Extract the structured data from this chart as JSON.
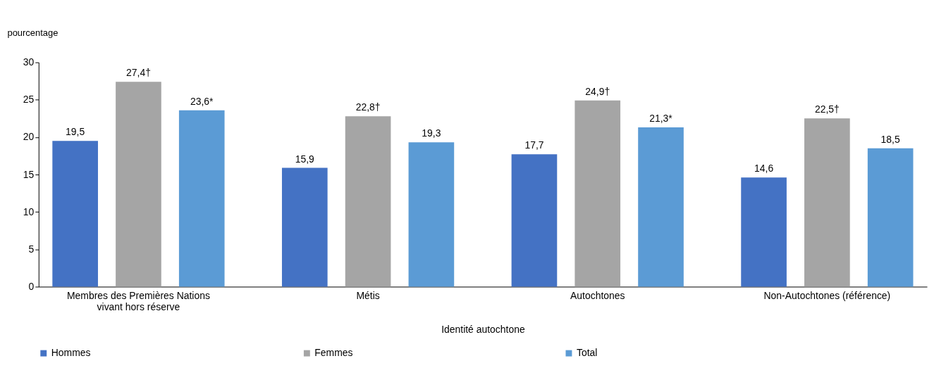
{
  "chart_data": {
    "type": "bar",
    "xlabel": "Identité autochtone",
    "ylabel": "pourcentage",
    "categories": [
      "Membres des Premières Nations\nvivant hors réserve",
      "Métis",
      "Autochtones",
      "Non-Autochtones (référence)"
    ],
    "series": [
      {
        "name": "Hommes",
        "color": "#4472c4",
        "values": [
          19.5,
          15.9,
          17.7,
          14.6
        ],
        "value_labels": [
          "19,5",
          "15,9",
          "17,7",
          "14,6"
        ]
      },
      {
        "name": "Femmes",
        "color": "#a5a5a5",
        "values": [
          27.4,
          22.8,
          24.9,
          22.5
        ],
        "value_labels": [
          "27,4†",
          "22,8†",
          "24,9†",
          "22,5†"
        ]
      },
      {
        "name": "Total",
        "color": "#5b9bd5",
        "values": [
          23.6,
          19.3,
          21.3,
          18.5
        ],
        "value_labels": [
          "23,6*",
          "19,3",
          "21,3*",
          "18,5"
        ]
      }
    ],
    "ylim": [
      0,
      30
    ],
    "yticks": [
      0,
      5,
      10,
      15,
      20,
      25,
      30
    ],
    "grid": false,
    "legend": "bottom"
  }
}
